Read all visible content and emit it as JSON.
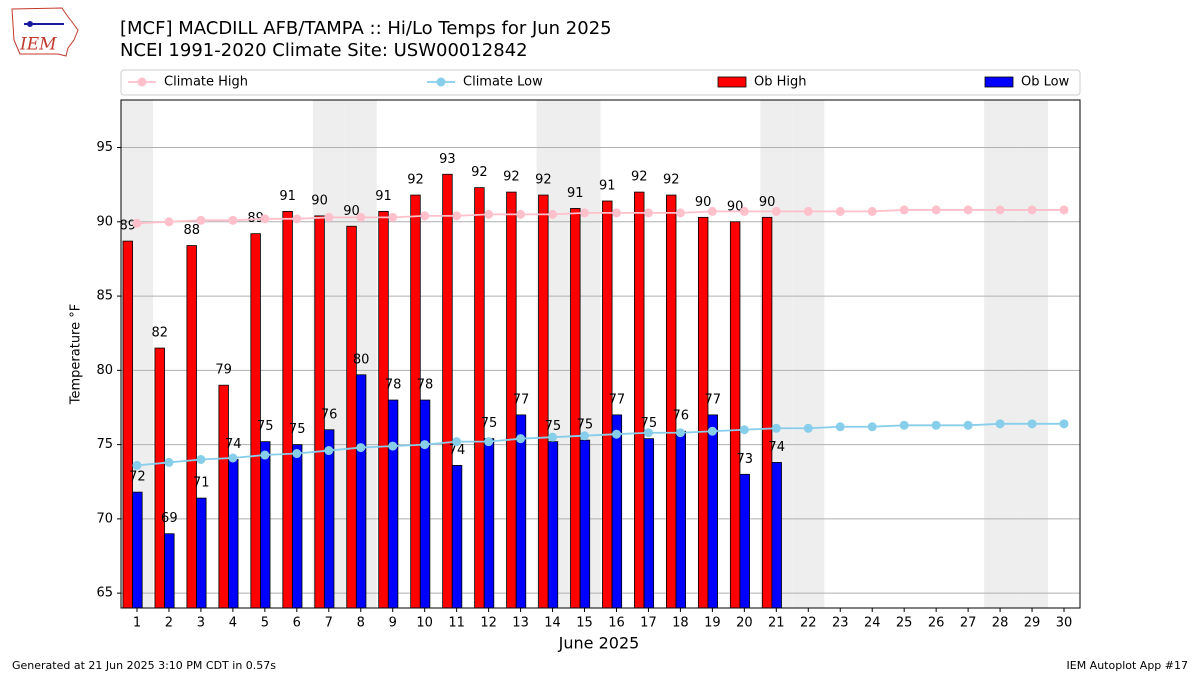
{
  "logo_text": "IEM",
  "footer_left": "Generated at 21 Jun 2025 3:10 PM CDT in 0.57s",
  "footer_right": "IEM Autoplot App #17",
  "chart_data": {
    "type": "bar",
    "title": "[MCF] MACDILL AFB/TAMPA :: Hi/Lo Temps for Jun 2025",
    "subtitle": "NCEI 1991-2020 Climate Site: USW00012842",
    "xlabel": "June 2025",
    "ylabel": "Temperature °F",
    "categories": [
      1,
      2,
      3,
      4,
      5,
      6,
      7,
      8,
      9,
      10,
      11,
      12,
      13,
      14,
      15,
      16,
      17,
      18,
      19,
      20,
      21,
      22,
      23,
      24,
      25,
      26,
      27,
      28,
      29,
      30
    ],
    "ylim": [
      64,
      98.2
    ],
    "yticks": [
      65,
      70,
      75,
      80,
      85,
      90,
      95
    ],
    "grid": true,
    "shaded_days": [
      1,
      7,
      8,
      14,
      15,
      21,
      22,
      28,
      29
    ],
    "series": [
      {
        "name": "Climate High",
        "type": "line",
        "color": "#ffc0cb",
        "values": [
          89.9,
          90.0,
          90.1,
          90.1,
          90.2,
          90.2,
          90.3,
          90.3,
          90.3,
          90.4,
          90.4,
          90.5,
          90.5,
          90.5,
          90.6,
          90.6,
          90.6,
          90.6,
          90.7,
          90.7,
          90.7,
          90.7,
          90.7,
          90.7,
          90.8,
          90.8,
          90.8,
          90.8,
          90.8,
          90.8
        ]
      },
      {
        "name": "Climate Low",
        "type": "line",
        "color": "#87ceeb",
        "values": [
          73.6,
          73.8,
          74.0,
          74.1,
          74.3,
          74.4,
          74.6,
          74.8,
          74.9,
          75.0,
          75.2,
          75.2,
          75.4,
          75.5,
          75.6,
          75.7,
          75.8,
          75.8,
          75.9,
          76.0,
          76.1,
          76.1,
          76.2,
          76.2,
          76.3,
          76.3,
          76.3,
          76.4,
          76.4,
          76.4
        ]
      },
      {
        "name": "Ob High",
        "type": "bar",
        "color": "#ff0000",
        "values": [
          88.7,
          81.5,
          88.4,
          79.0,
          89.2,
          90.7,
          90.4,
          89.7,
          90.7,
          91.8,
          93.2,
          92.3,
          92.0,
          91.8,
          90.9,
          91.4,
          92.0,
          91.8,
          90.3,
          90.0,
          90.3,
          null,
          null,
          null,
          null,
          null,
          null,
          null,
          null,
          null
        ],
        "value_labels": [
          "89",
          "82",
          "88",
          "79",
          "89",
          "91",
          "90",
          "90",
          "91",
          "92",
          "93",
          "92",
          "92",
          "92",
          "91",
          "91",
          "92",
          "92",
          "90",
          "90",
          "90",
          null,
          null,
          null,
          null,
          null,
          null,
          null,
          null,
          null
        ]
      },
      {
        "name": "Ob Low",
        "type": "bar",
        "color": "#0000ff",
        "values": [
          71.8,
          69.0,
          71.4,
          74.0,
          75.2,
          75.0,
          76.0,
          79.7,
          78.0,
          78.0,
          73.6,
          75.4,
          77.0,
          75.2,
          75.3,
          77.0,
          75.4,
          75.9,
          77.0,
          73.0,
          73.8,
          null,
          null,
          null,
          null,
          null,
          null,
          null,
          null,
          null
        ],
        "value_labels": [
          "72",
          "69",
          "71",
          "74",
          "75",
          "75",
          "76",
          "80",
          "78",
          "78",
          "74",
          "75",
          "77",
          "75",
          "75",
          "77",
          "75",
          "76",
          "77",
          "73",
          "74",
          null,
          null,
          null,
          null,
          null,
          null,
          null,
          null,
          null
        ]
      }
    ]
  }
}
